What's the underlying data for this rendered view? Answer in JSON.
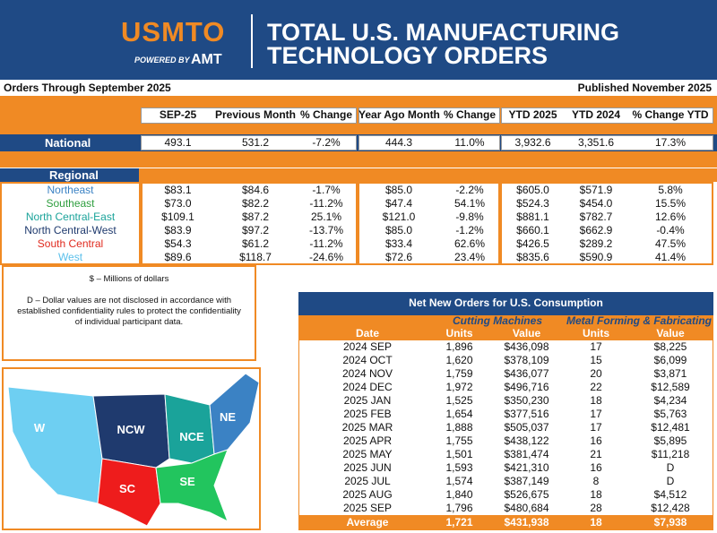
{
  "header": {
    "logo": "USMTO",
    "powered_by": "POWERED BY",
    "powered_brand": "AMT",
    "title_line1": "TOTAL U.S. MANUFACTURING",
    "title_line2": "TECHNOLOGY ORDERS"
  },
  "subheader": {
    "left": "Orders Through September 2025",
    "right": "Published November 2025"
  },
  "summary_table": {
    "columns": [
      "SEP-25",
      "Previous Month",
      "% Change",
      "Year Ago Month",
      "% Change",
      "YTD 2025",
      "YTD 2024",
      "% Change YTD"
    ],
    "national": {
      "label": "National",
      "values": [
        "493.1",
        "531.2",
        "-7.2%",
        "444.3",
        "11.0%",
        "3,932.6",
        "3,351.6",
        "17.3%"
      ]
    },
    "regional_label": "Regional",
    "regions": [
      {
        "name": "Northeast",
        "color": "#3b82c4",
        "values": [
          "$83.1",
          "$84.6",
          "-1.7%",
          "$85.0",
          "-2.2%",
          "$605.0",
          "$571.9",
          "5.8%"
        ]
      },
      {
        "name": "Southeast",
        "color": "#2e9e3e",
        "values": [
          "$73.0",
          "$82.2",
          "-11.2%",
          "$47.4",
          "54.1%",
          "$524.3",
          "$454.0",
          "15.5%"
        ]
      },
      {
        "name": "North Central-East",
        "color": "#1aa39a",
        "values": [
          "$109.1",
          "$87.2",
          "25.1%",
          "$121.0",
          "-9.8%",
          "$881.1",
          "$782.7",
          "12.6%"
        ]
      },
      {
        "name": "North Central-West",
        "color": "#1f3a6e",
        "values": [
          "$83.9",
          "$97.2",
          "-13.7%",
          "$85.0",
          "-1.2%",
          "$660.1",
          "$662.9",
          "-0.4%"
        ]
      },
      {
        "name": "South Central",
        "color": "#e02a1e",
        "values": [
          "$54.3",
          "$61.2",
          "-11.2%",
          "$33.4",
          "62.6%",
          "$426.5",
          "$289.2",
          "47.5%"
        ]
      },
      {
        "name": "West",
        "color": "#5bc0eb",
        "values": [
          "$89.6",
          "$118.7",
          "-24.6%",
          "$72.6",
          "23.4%",
          "$835.6",
          "$590.9",
          "41.4%"
        ]
      }
    ]
  },
  "notes": [
    "$ – Millions of dollars",
    "D – Dollar values are not disclosed in accordance with established confidentiality rules to protect the confidentiality of individual participant data."
  ],
  "map": {
    "labels": [
      "W",
      "NCW",
      "NCE",
      "NE",
      "SC",
      "SE"
    ]
  },
  "orders_table": {
    "title": "Net New Orders for U.S. Consumption",
    "groups": [
      "Cutting Machines",
      "Metal Forming & Fabricating"
    ],
    "columns": [
      "Date",
      "Units",
      "Value",
      "Units",
      "Value"
    ],
    "rows": [
      [
        "2024 SEP",
        "1,896",
        "$436,098",
        "17",
        "$8,225"
      ],
      [
        "2024 OCT",
        "1,620",
        "$378,109",
        "15",
        "$6,099"
      ],
      [
        "2024 NOV",
        "1,759",
        "$436,077",
        "20",
        "$3,871"
      ],
      [
        "2024 DEC",
        "1,972",
        "$496,716",
        "22",
        "$12,589"
      ],
      [
        "2025 JAN",
        "1,525",
        "$350,230",
        "18",
        "$4,234"
      ],
      [
        "2025 FEB",
        "1,654",
        "$377,516",
        "17",
        "$5,763"
      ],
      [
        "2025 MAR",
        "1,888",
        "$505,037",
        "17",
        "$12,481"
      ],
      [
        "2025 APR",
        "1,755",
        "$438,122",
        "16",
        "$5,895"
      ],
      [
        "2025 MAY",
        "1,501",
        "$381,474",
        "21",
        "$11,218"
      ],
      [
        "2025 JUN",
        "1,593",
        "$421,310",
        "16",
        "D"
      ],
      [
        "2025 JUL",
        "1,574",
        "$387,149",
        "8",
        "D"
      ],
      [
        "2025 AUG",
        "1,840",
        "$526,675",
        "18",
        "$4,512"
      ],
      [
        "2025 SEP",
        "1,796",
        "$480,684",
        "28",
        "$12,428"
      ]
    ],
    "average": [
      "Average",
      "1,721",
      "$431,938",
      "18",
      "$7,938"
    ]
  }
}
